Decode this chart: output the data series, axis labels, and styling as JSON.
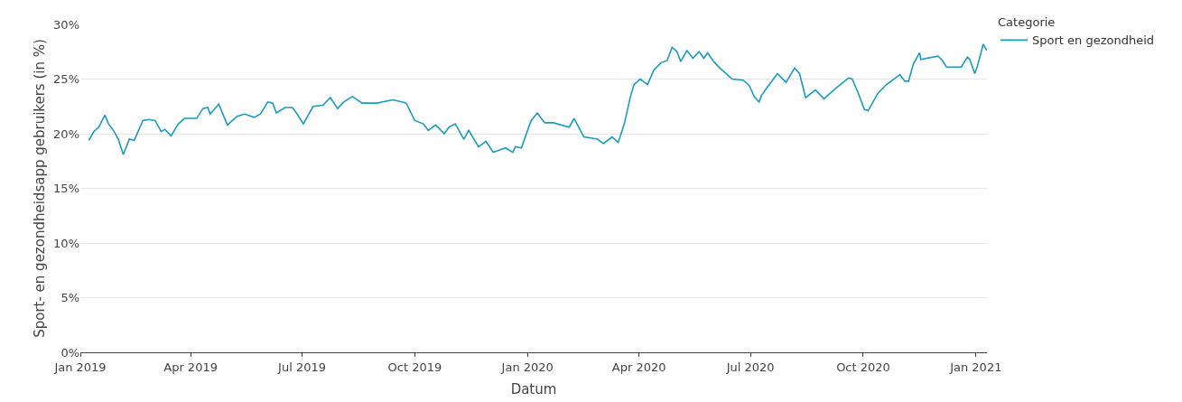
{
  "chart_data": {
    "type": "line",
    "xlabel": "Datum",
    "ylabel": "Sport- en gezondheidsapp gebruikers (in %)",
    "legend_title": "Categorie",
    "legend": "top right",
    "grid": "y",
    "marker": "none",
    "line_style": "solid",
    "xlim": [
      "2019-01-01",
      "2021-01-10"
    ],
    "xticks": [
      {
        "value": "2019-01-01",
        "label": "Jan 2019"
      },
      {
        "value": "2019-04-01",
        "label": "Apr 2019"
      },
      {
        "value": "2019-07-01",
        "label": "Jul 2019"
      },
      {
        "value": "2019-10-01",
        "label": "Oct 2019"
      },
      {
        "value": "2020-01-01",
        "label": "Jan 2020"
      },
      {
        "value": "2020-04-01",
        "label": "Apr 2020"
      },
      {
        "value": "2020-07-01",
        "label": "Jul 2020"
      },
      {
        "value": "2020-10-01",
        "label": "Oct 2020"
      },
      {
        "value": "2021-01-01",
        "label": "Jan 2021"
      }
    ],
    "ylim": [
      0,
      30
    ],
    "yticks": [
      {
        "value": 0,
        "label": "0%"
      },
      {
        "value": 5,
        "label": "5%"
      },
      {
        "value": 10,
        "label": "10%"
      },
      {
        "value": 15,
        "label": "15%"
      },
      {
        "value": 20,
        "label": "20%"
      },
      {
        "value": 25,
        "label": "25%"
      },
      {
        "value": 30,
        "label": "30%"
      }
    ],
    "x": [
      "2019-01-08",
      "2019-01-12",
      "2019-01-16",
      "2019-01-21",
      "2019-01-24",
      "2019-01-28",
      "2019-02-01",
      "2019-02-05",
      "2019-02-10",
      "2019-02-14",
      "2019-02-21",
      "2019-02-26",
      "2019-03-03",
      "2019-03-08",
      "2019-03-11",
      "2019-03-16",
      "2019-03-22",
      "2019-03-27",
      "2019-04-06",
      "2019-04-11",
      "2019-04-15",
      "2019-04-17",
      "2019-04-24",
      "2019-05-01",
      "2019-05-09",
      "2019-05-15",
      "2019-05-23",
      "2019-05-28",
      "2019-06-03",
      "2019-06-07",
      "2019-06-10",
      "2019-06-17",
      "2019-06-23",
      "2019-06-27",
      "2019-07-02",
      "2019-07-10",
      "2019-07-18",
      "2019-07-24",
      "2019-07-30",
      "2019-08-04",
      "2019-08-11",
      "2019-08-19",
      "2019-08-31",
      "2019-09-13",
      "2019-09-21",
      "2019-09-24",
      "2019-10-01",
      "2019-10-08",
      "2019-10-12",
      "2019-10-18",
      "2019-10-25",
      "2019-10-29",
      "2019-11-03",
      "2019-11-10",
      "2019-11-14",
      "2019-11-22",
      "2019-11-28",
      "2019-12-04",
      "2019-12-14",
      "2019-12-20",
      "2019-12-22",
      "2019-12-27",
      "2020-01-01",
      "2020-01-04",
      "2020-01-09",
      "2020-01-15",
      "2020-01-22",
      "2020-02-04",
      "2020-02-08",
      "2020-02-16",
      "2020-02-27",
      "2020-03-03",
      "2020-03-10",
      "2020-03-15",
      "2020-03-20",
      "2020-03-25",
      "2020-03-28",
      "2020-04-02",
      "2020-04-08",
      "2020-04-13",
      "2020-04-19",
      "2020-04-24",
      "2020-04-28",
      "2020-05-02",
      "2020-05-05",
      "2020-05-10",
      "2020-05-15",
      "2020-05-20",
      "2020-05-24",
      "2020-05-27",
      "2020-06-01",
      "2020-06-06",
      "2020-06-11",
      "2020-06-16",
      "2020-06-25",
      "2020-06-30",
      "2020-07-04",
      "2020-07-08",
      "2020-07-10",
      "2020-07-15",
      "2020-07-23",
      "2020-07-30",
      "2020-08-06",
      "2020-08-10",
      "2020-08-15",
      "2020-08-23",
      "2020-08-30",
      "2020-09-08",
      "2020-09-19",
      "2020-09-22",
      "2020-09-27",
      "2020-10-02",
      "2020-10-05",
      "2020-10-13",
      "2020-10-20",
      "2020-10-31",
      "2020-11-04",
      "2020-11-07",
      "2020-11-11",
      "2020-11-16",
      "2020-11-17",
      "2020-12-01",
      "2020-12-04",
      "2020-12-08",
      "2020-12-20",
      "2020-12-25",
      "2020-12-27",
      "2020-12-31",
      "2021-01-02",
      "2021-01-07",
      "2021-01-10"
    ],
    "series": [
      {
        "name": "Sport en gezondheid",
        "color": "#1a9bc0",
        "values": [
          19.4,
          20.2,
          20.6,
          21.7,
          20.9,
          20.3,
          19.5,
          18.1,
          19.5,
          19.4,
          21.2,
          21.3,
          21.2,
          20.2,
          20.4,
          19.8,
          20.9,
          21.4,
          21.4,
          22.3,
          22.4,
          21.8,
          22.7,
          20.8,
          21.6,
          21.8,
          21.5,
          21.8,
          22.9,
          22.8,
          21.9,
          22.4,
          22.4,
          21.8,
          20.9,
          22.5,
          22.6,
          23.3,
          22.3,
          22.9,
          23.4,
          22.8,
          22.8,
          23.1,
          22.9,
          22.8,
          21.2,
          20.9,
          20.3,
          20.8,
          20.0,
          20.6,
          20.9,
          19.5,
          20.3,
          18.8,
          19.3,
          18.3,
          18.7,
          18.3,
          18.8,
          18.7,
          20.3,
          21.2,
          21.9,
          21.0,
          21.0,
          20.6,
          21.4,
          19.7,
          19.5,
          19.1,
          19.7,
          19.2,
          20.9,
          23.4,
          24.5,
          25.0,
          24.5,
          25.8,
          26.5,
          26.7,
          27.9,
          27.5,
          26.6,
          27.6,
          26.9,
          27.5,
          26.9,
          27.4,
          26.6,
          26.0,
          25.5,
          25.0,
          24.9,
          24.4,
          23.4,
          22.9,
          23.5,
          24.3,
          25.5,
          24.7,
          26.0,
          25.5,
          23.3,
          24.0,
          23.2,
          24.1,
          25.1,
          25.0,
          23.7,
          22.2,
          22.1,
          23.7,
          24.5,
          25.4,
          24.8,
          24.8,
          26.4,
          27.4,
          26.8,
          27.1,
          26.8,
          26.1,
          26.1,
          27.0,
          26.8,
          25.5,
          26.1,
          28.2,
          27.6
        ]
      }
    ]
  }
}
